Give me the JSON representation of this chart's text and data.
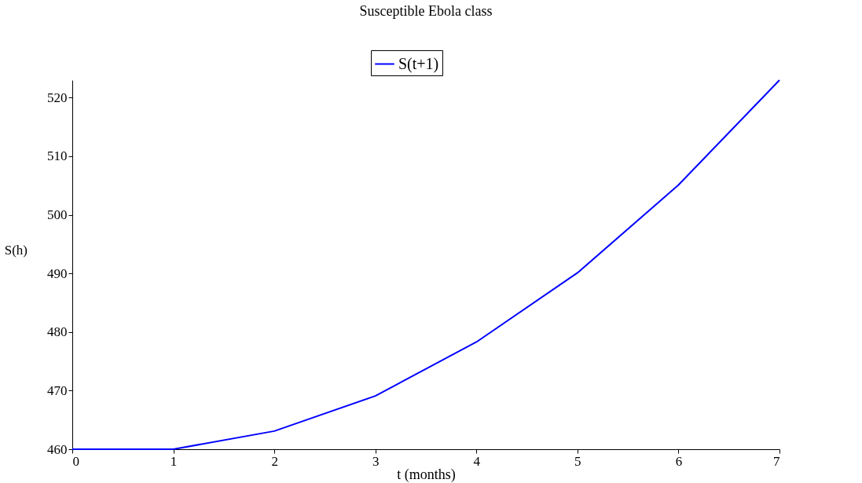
{
  "chart_data": {
    "type": "line",
    "title": "Susceptible Ebola class",
    "xlabel": "t (months)",
    "ylabel": "S(h)",
    "x": [
      0,
      1,
      2,
      3,
      4,
      5,
      6,
      7
    ],
    "series": [
      {
        "name": "S(t+1)",
        "color": "#0000ff",
        "values": [
          460,
          460,
          463.1,
          469.1,
          478.3,
          490.1,
          505.1,
          523
        ]
      }
    ],
    "xlim": [
      0,
      7
    ],
    "xticks": [
      0,
      1,
      2,
      3,
      4,
      5,
      6,
      7
    ],
    "ylim": [
      460,
      523
    ],
    "yticks": [
      460,
      470,
      480,
      490,
      500,
      510,
      520
    ],
    "grid": false,
    "legend": "top",
    "marker": "none",
    "line_style": "solid"
  }
}
